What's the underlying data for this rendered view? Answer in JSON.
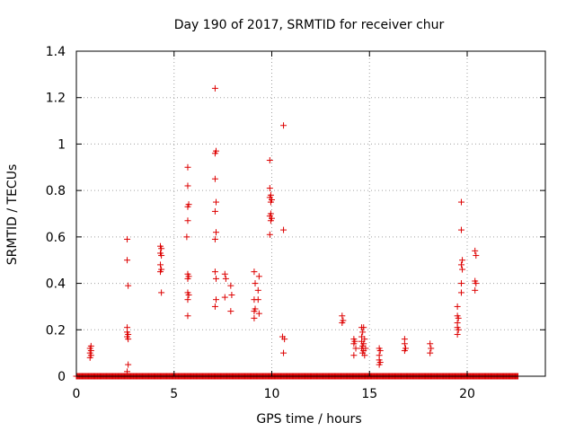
{
  "chart_data": {
    "type": "scatter",
    "title": "Day 190 of 2017, SRMTID for receiver chur",
    "xlabel": "GPS time / hours",
    "ylabel": "SRMTID / TECUs",
    "xlim": [
      0,
      24
    ],
    "ylim": [
      0,
      1.4
    ],
    "x_ticks": [
      0,
      5,
      10,
      15,
      20
    ],
    "y_ticks": [
      0,
      0.2,
      0.4,
      0.6,
      0.8,
      1,
      1.2,
      1.4
    ],
    "x_tick_labels": [
      "0",
      "5",
      "10",
      "15",
      "20"
    ],
    "y_tick_labels": [
      "0",
      "0.2",
      "0.4",
      "0.6",
      "0.8",
      "1",
      "1.2",
      "1.4"
    ],
    "grid": true,
    "marker": "+",
    "color": "#dd0000",
    "baseline": {
      "y": 0,
      "x_start": 0.0,
      "x_end": 22.6,
      "step": 0.04
    },
    "points": [
      [
        0.7,
        0.08
      ],
      [
        0.7,
        0.1
      ],
      [
        0.7,
        0.12
      ],
      [
        0.75,
        0.09
      ],
      [
        0.75,
        0.11
      ],
      [
        0.75,
        0.13
      ],
      [
        2.6,
        0.59
      ],
      [
        2.6,
        0.5
      ],
      [
        2.65,
        0.39
      ],
      [
        2.6,
        0.21
      ],
      [
        2.6,
        0.19
      ],
      [
        2.65,
        0.18
      ],
      [
        2.6,
        0.17
      ],
      [
        2.65,
        0.16
      ],
      [
        2.65,
        0.05
      ],
      [
        2.6,
        0.02
      ],
      [
        4.3,
        0.56
      ],
      [
        4.35,
        0.55
      ],
      [
        4.3,
        0.53
      ],
      [
        4.35,
        0.52
      ],
      [
        4.3,
        0.48
      ],
      [
        4.35,
        0.46
      ],
      [
        4.3,
        0.45
      ],
      [
        4.35,
        0.36
      ],
      [
        5.7,
        0.9
      ],
      [
        5.7,
        0.82
      ],
      [
        5.75,
        0.74
      ],
      [
        5.7,
        0.73
      ],
      [
        5.7,
        0.67
      ],
      [
        5.65,
        0.6
      ],
      [
        5.7,
        0.44
      ],
      [
        5.75,
        0.43
      ],
      [
        5.7,
        0.42
      ],
      [
        5.7,
        0.36
      ],
      [
        5.75,
        0.35
      ],
      [
        5.7,
        0.33
      ],
      [
        5.7,
        0.26
      ],
      [
        7.1,
        1.24
      ],
      [
        7.15,
        0.97
      ],
      [
        7.1,
        0.96
      ],
      [
        7.1,
        0.85
      ],
      [
        7.15,
        0.75
      ],
      [
        7.1,
        0.71
      ],
      [
        7.15,
        0.62
      ],
      [
        7.1,
        0.59
      ],
      [
        7.1,
        0.45
      ],
      [
        7.15,
        0.42
      ],
      [
        7.15,
        0.33
      ],
      [
        7.1,
        0.3
      ],
      [
        7.6,
        0.44
      ],
      [
        7.65,
        0.42
      ],
      [
        7.6,
        0.34
      ],
      [
        7.9,
        0.39
      ],
      [
        7.95,
        0.35
      ],
      [
        7.9,
        0.28
      ],
      [
        9.1,
        0.45
      ],
      [
        9.15,
        0.4
      ],
      [
        9.1,
        0.33
      ],
      [
        9.15,
        0.29
      ],
      [
        9.1,
        0.28
      ],
      [
        9.1,
        0.25
      ],
      [
        9.35,
        0.43
      ],
      [
        9.3,
        0.37
      ],
      [
        9.3,
        0.33
      ],
      [
        9.35,
        0.27
      ],
      [
        9.9,
        0.93
      ],
      [
        9.9,
        0.81
      ],
      [
        9.95,
        0.78
      ],
      [
        9.9,
        0.77
      ],
      [
        10.0,
        0.76
      ],
      [
        9.95,
        0.75
      ],
      [
        9.95,
        0.7
      ],
      [
        9.9,
        0.69
      ],
      [
        10.0,
        0.68
      ],
      [
        9.95,
        0.67
      ],
      [
        9.9,
        0.61
      ],
      [
        10.6,
        1.08
      ],
      [
        10.6,
        0.63
      ],
      [
        10.55,
        0.17
      ],
      [
        10.65,
        0.16
      ],
      [
        10.6,
        0.1
      ],
      [
        13.6,
        0.26
      ],
      [
        13.65,
        0.24
      ],
      [
        13.6,
        0.23
      ],
      [
        14.2,
        0.16
      ],
      [
        14.25,
        0.15
      ],
      [
        14.2,
        0.14
      ],
      [
        14.3,
        0.12
      ],
      [
        14.2,
        0.09
      ],
      [
        14.6,
        0.21
      ],
      [
        14.7,
        0.21
      ],
      [
        14.65,
        0.19
      ],
      [
        14.6,
        0.17
      ],
      [
        14.75,
        0.16
      ],
      [
        14.6,
        0.15
      ],
      [
        14.7,
        0.14
      ],
      [
        14.65,
        0.13
      ],
      [
        14.8,
        0.12
      ],
      [
        14.6,
        0.12
      ],
      [
        14.7,
        0.11
      ],
      [
        14.65,
        0.1
      ],
      [
        14.75,
        0.09
      ],
      [
        15.5,
        0.12
      ],
      [
        15.55,
        0.11
      ],
      [
        15.5,
        0.09
      ],
      [
        15.5,
        0.07
      ],
      [
        15.55,
        0.06
      ],
      [
        15.5,
        0.05
      ],
      [
        16.8,
        0.16
      ],
      [
        16.8,
        0.14
      ],
      [
        16.85,
        0.12
      ],
      [
        16.8,
        0.11
      ],
      [
        18.1,
        0.14
      ],
      [
        18.15,
        0.12
      ],
      [
        18.1,
        0.1
      ],
      [
        19.5,
        0.3
      ],
      [
        19.5,
        0.26
      ],
      [
        19.55,
        0.25
      ],
      [
        19.5,
        0.23
      ],
      [
        19.5,
        0.21
      ],
      [
        19.55,
        0.2
      ],
      [
        19.5,
        0.18
      ],
      [
        19.7,
        0.75
      ],
      [
        19.7,
        0.63
      ],
      [
        19.75,
        0.5
      ],
      [
        19.7,
        0.48
      ],
      [
        19.75,
        0.46
      ],
      [
        19.7,
        0.4
      ],
      [
        19.7,
        0.36
      ],
      [
        20.4,
        0.54
      ],
      [
        20.45,
        0.52
      ],
      [
        20.4,
        0.41
      ],
      [
        20.45,
        0.4
      ],
      [
        20.4,
        0.37
      ]
    ]
  }
}
